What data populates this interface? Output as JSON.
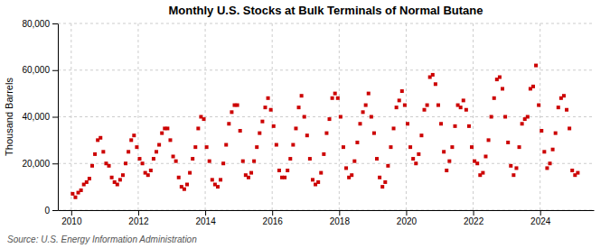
{
  "chart_data": {
    "type": "scatter",
    "title": "Monthly U.S. Stocks at Bulk Terminals of Normal Butane",
    "ylabel": "Thousand Barrels",
    "annotations": [
      "Source: U.S. Energy Information Administration"
    ],
    "color": "#cc0000",
    "marker": "square",
    "grid": true,
    "xlim": [
      2009.6,
      2025.6
    ],
    "xticks": [
      2010,
      2012,
      2014,
      2016,
      2018,
      2020,
      2022,
      2024
    ],
    "ylim": [
      0,
      80000
    ],
    "yticks": [
      0,
      {
        "value": 20000,
        "label": "20,000"
      },
      {
        "value": 40000,
        "label": "40,000"
      },
      {
        "value": 60000,
        "label": "60,000"
      },
      {
        "value": 80000,
        "label": "80,000"
      }
    ],
    "x": [
      2010.0416666666667,
      2010.125,
      2010.2083333333333,
      2010.2916666666667,
      2010.375,
      2010.4583333333333,
      2010.5416666666667,
      2010.625,
      2010.7083333333333,
      2010.7916666666667,
      2010.875,
      2010.9583333333333,
      2011.0416666666667,
      2011.125,
      2011.2083333333333,
      2011.2916666666667,
      2011.375,
      2011.4583333333333,
      2011.5416666666667,
      2011.625,
      2011.7083333333333,
      2011.7916666666667,
      2011.875,
      2011.9583333333333,
      2012.0416666666667,
      2012.125,
      2012.2083333333333,
      2012.2916666666667,
      2012.375,
      2012.4583333333333,
      2012.5416666666667,
      2012.625,
      2012.7083333333333,
      2012.7916666666667,
      2012.875,
      2012.9583333333333,
      2013.0416666666667,
      2013.125,
      2013.2083333333333,
      2013.2916666666667,
      2013.375,
      2013.4583333333333,
      2013.5416666666667,
      2013.625,
      2013.7083333333333,
      2013.7916666666667,
      2013.875,
      2013.9583333333333,
      2014.0416666666667,
      2014.125,
      2014.2083333333333,
      2014.2916666666667,
      2014.375,
      2014.4583333333333,
      2014.5416666666667,
      2014.625,
      2014.7083333333333,
      2014.7916666666667,
      2014.875,
      2014.9583333333333,
      2015.0416666666667,
      2015.125,
      2015.2083333333333,
      2015.2916666666667,
      2015.375,
      2015.4583333333333,
      2015.5416666666667,
      2015.625,
      2015.7083333333333,
      2015.7916666666667,
      2015.875,
      2015.9583333333333,
      2016.0416666666667,
      2016.125,
      2016.2083333333333,
      2016.2916666666667,
      2016.375,
      2016.4583333333333,
      2016.5416666666667,
      2016.625,
      2016.7083333333333,
      2016.7916666666667,
      2016.875,
      2016.9583333333333,
      2017.0416666666667,
      2017.125,
      2017.2083333333333,
      2017.2916666666667,
      2017.375,
      2017.4583333333333,
      2017.5416666666667,
      2017.625,
      2017.7083333333333,
      2017.7916666666667,
      2017.875,
      2017.9583333333333,
      2018.0416666666667,
      2018.125,
      2018.2083333333333,
      2018.2916666666667,
      2018.375,
      2018.4583333333333,
      2018.5416666666667,
      2018.625,
      2018.7083333333333,
      2018.7916666666667,
      2018.875,
      2018.9583333333333,
      2019.0416666666667,
      2019.125,
      2019.2083333333333,
      2019.2916666666667,
      2019.375,
      2019.4583333333333,
      2019.5416666666667,
      2019.625,
      2019.7083333333333,
      2019.7916666666667,
      2019.875,
      2019.9583333333333,
      2020.0416666666667,
      2020.125,
      2020.2083333333333,
      2020.2916666666667,
      2020.375,
      2020.4583333333333,
      2020.5416666666667,
      2020.625,
      2020.7083333333333,
      2020.7916666666667,
      2020.875,
      2020.9583333333333,
      2021.0416666666667,
      2021.125,
      2021.2083333333333,
      2021.2916666666667,
      2021.375,
      2021.4583333333333,
      2021.5416666666667,
      2021.625,
      2021.7083333333333,
      2021.7916666666667,
      2021.875,
      2021.9583333333333,
      2022.0416666666667,
      2022.125,
      2022.2083333333333,
      2022.2916666666667,
      2022.375,
      2022.4583333333333,
      2022.5416666666667,
      2022.625,
      2022.7083333333333,
      2022.7916666666667,
      2022.875,
      2022.9583333333333,
      2023.0416666666667,
      2023.125,
      2023.2083333333333,
      2023.2916666666667,
      2023.375,
      2023.4583333333333,
      2023.5416666666667,
      2023.625,
      2023.7083333333333,
      2023.7916666666667,
      2023.875,
      2023.9583333333333,
      2024.0416666666667,
      2024.125,
      2024.2083333333333,
      2024.2916666666667,
      2024.375,
      2024.4583333333333,
      2024.5416666666667,
      2024.625,
      2024.7083333333333,
      2024.7916666666667,
      2024.875,
      2024.9583333333333,
      2025.0416666666667,
      2025.125
    ],
    "values": [
      7000,
      5500,
      7500,
      8500,
      11000,
      12000,
      13500,
      19000,
      24000,
      30000,
      31000,
      25000,
      20000,
      19000,
      14000,
      12000,
      11000,
      13000,
      15000,
      20000,
      25000,
      30000,
      32000,
      27000,
      22000,
      20000,
      16000,
      15000,
      17000,
      22000,
      25000,
      28000,
      33000,
      35000,
      35000,
      30000,
      23000,
      21000,
      14000,
      10000,
      9000,
      11000,
      16000,
      22000,
      27000,
      35000,
      40000,
      39000,
      27000,
      21000,
      13000,
      11000,
      10000,
      13000,
      20000,
      28000,
      37000,
      42000,
      45000,
      45000,
      34000,
      21000,
      15000,
      14000,
      16000,
      21000,
      27000,
      33000,
      38000,
      44000,
      48000,
      43000,
      36000,
      28000,
      17000,
      14000,
      14000,
      17000,
      22000,
      28000,
      35000,
      44000,
      49000,
      40000,
      32000,
      22000,
      13000,
      11000,
      12000,
      16000,
      24000,
      33000,
      39000,
      48000,
      50000,
      48000,
      40000,
      27000,
      18000,
      14000,
      15000,
      21000,
      29000,
      37000,
      42000,
      45000,
      50000,
      40000,
      33000,
      22000,
      14000,
      10000,
      12000,
      19000,
      27000,
      35000,
      44000,
      47000,
      51000,
      45000,
      37000,
      27000,
      22000,
      20000,
      24000,
      32000,
      43000,
      45000,
      57000,
      58000,
      54000,
      45000,
      37000,
      25000,
      17000,
      21000,
      27000,
      36000,
      45000,
      44000,
      47000,
      43000,
      36000,
      27000,
      21000,
      20000,
      15000,
      16000,
      23000,
      30000,
      40000,
      48000,
      56000,
      57000,
      52000,
      40000,
      29000,
      19000,
      15000,
      18000,
      27000,
      37000,
      39000,
      40000,
      52000,
      53000,
      62000,
      45000,
      34000,
      25000,
      18000,
      20000,
      26000,
      33000,
      44000,
      48000,
      49000,
      43000,
      35000,
      17000,
      15000,
      16000
    ]
  }
}
